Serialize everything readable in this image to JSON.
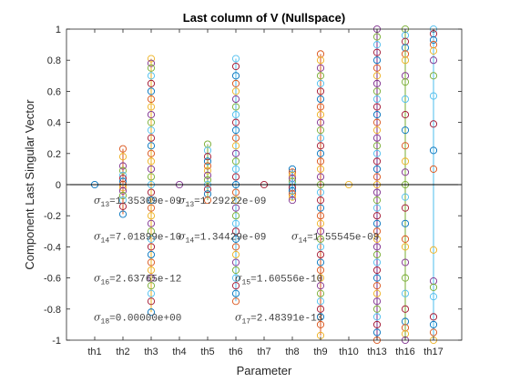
{
  "chart_data": {
    "type": "scatter",
    "title": "Last column of V (Nullspace)",
    "xlabel": "Parameter",
    "ylabel": "Component Last Singular Vector",
    "categories": [
      "th1",
      "th2",
      "th3",
      "th4",
      "th5",
      "th6",
      "th7",
      "th8",
      "th9",
      "th10",
      "th13",
      "th16",
      "th17"
    ],
    "ylim": [
      -1,
      1
    ],
    "yticks": [
      -1,
      -0.8,
      -0.6,
      -0.4,
      -0.2,
      0,
      0.2,
      0.4,
      0.6,
      0.8,
      1
    ],
    "ytick_labels": [
      "-1",
      "-0.8",
      "-0.6",
      "-0.4",
      "-0.2",
      "0",
      "0.2",
      "0.4",
      "0.6",
      "0.8",
      "1"
    ],
    "grid": false,
    "zero_line": true,
    "marker": "open-circle",
    "series_colors": [
      "#0072BD",
      "#D95319",
      "#EDB120",
      "#7E2F8E",
      "#77AC30",
      "#4DBEEE",
      "#A2142F"
    ],
    "columns": [
      {
        "category": "th1",
        "min": 0,
        "max": 0,
        "points": [
          0
        ]
      },
      {
        "category": "th2",
        "min": -0.19,
        "max": 0.23,
        "points": [
          0.23,
          0.18,
          0.12,
          0.09,
          0.06,
          0.04,
          0.02,
          0,
          -0.02,
          -0.04,
          -0.07,
          -0.1,
          -0.14,
          -0.19
        ]
      },
      {
        "category": "th3",
        "min": -0.82,
        "max": 0.81,
        "points": [
          0.81,
          0.78,
          0.75,
          0.7,
          0.65,
          0.6,
          0.55,
          0.5,
          0.45,
          0.4,
          0.35,
          0.3,
          0.25,
          0.2,
          0.15,
          0.1,
          0.05,
          0,
          -0.05,
          -0.1,
          -0.15,
          -0.2,
          -0.25,
          -0.3,
          -0.35,
          -0.4,
          -0.45,
          -0.5,
          -0.55,
          -0.6,
          -0.65,
          -0.7,
          -0.75,
          -0.82
        ]
      },
      {
        "category": "th4",
        "min": 0,
        "max": 0,
        "points": [
          0
        ]
      },
      {
        "category": "th5",
        "min": -0.1,
        "max": 0.26,
        "points": [
          0.26,
          0.22,
          0.18,
          0.15,
          0.12,
          0.09,
          0.06,
          0.03,
          0,
          -0.03,
          -0.06,
          -0.1
        ]
      },
      {
        "category": "th6",
        "min": -0.75,
        "max": 0.81,
        "points": [
          0.81,
          0.76,
          0.7,
          0.65,
          0.6,
          0.55,
          0.5,
          0.45,
          0.4,
          0.35,
          0.3,
          0.25,
          0.2,
          0.15,
          0.1,
          0.05,
          0,
          -0.05,
          -0.1,
          -0.15,
          -0.2,
          -0.25,
          -0.3,
          -0.35,
          -0.4,
          -0.45,
          -0.5,
          -0.55,
          -0.6,
          -0.65,
          -0.7,
          -0.75
        ]
      },
      {
        "category": "th7",
        "min": 0,
        "max": 0,
        "points": [
          0
        ]
      },
      {
        "category": "th8",
        "min": -0.1,
        "max": 0.1,
        "points": [
          0.1,
          0.08,
          0.06,
          0.04,
          0.02,
          0,
          -0.02,
          -0.04,
          -0.06,
          -0.08,
          -0.1
        ]
      },
      {
        "category": "th9",
        "min": -0.97,
        "max": 0.84,
        "points": [
          0.84,
          0.8,
          0.75,
          0.7,
          0.65,
          0.6,
          0.55,
          0.5,
          0.45,
          0.4,
          0.35,
          0.3,
          0.25,
          0.2,
          0.15,
          0.1,
          0.05,
          0,
          -0.05,
          -0.1,
          -0.15,
          -0.2,
          -0.25,
          -0.3,
          -0.35,
          -0.4,
          -0.45,
          -0.5,
          -0.55,
          -0.6,
          -0.65,
          -0.7,
          -0.75,
          -0.8,
          -0.85,
          -0.9,
          -0.97
        ]
      },
      {
        "category": "th10",
        "min": 0,
        "max": 0,
        "points": [
          0
        ]
      },
      {
        "category": "th13",
        "min": -1,
        "max": 1,
        "points": [
          1,
          0.95,
          0.9,
          0.85,
          0.8,
          0.75,
          0.7,
          0.65,
          0.6,
          0.55,
          0.5,
          0.45,
          0.4,
          0.35,
          0.3,
          0.25,
          0.2,
          0.15,
          0.1,
          0.05,
          0,
          -0.05,
          -0.1,
          -0.15,
          -0.2,
          -0.25,
          -0.3,
          -0.35,
          -0.4,
          -0.45,
          -0.5,
          -0.55,
          -0.6,
          -0.65,
          -0.7,
          -0.75,
          -0.8,
          -0.85,
          -0.9,
          -0.95,
          -1
        ]
      },
      {
        "category": "th16",
        "min": -1,
        "max": 1,
        "points": [
          1,
          0.96,
          0.92,
          0.88,
          0.84,
          0.8,
          0.7,
          0.66,
          0.55,
          0.45,
          0.35,
          0.25,
          0.15,
          0.08,
          0,
          -0.08,
          -0.15,
          -0.25,
          -0.35,
          -0.4,
          -0.5,
          -0.6,
          -0.7,
          -0.8,
          -0.88,
          -0.92,
          -0.96,
          -1
        ]
      },
      {
        "category": "th17",
        "min": -1,
        "max": 1,
        "points": [
          1,
          0.97,
          0.93,
          0.9,
          0.86,
          0.8,
          0.7,
          0.57,
          0.39,
          0.22,
          0.1,
          -0.42,
          -0.62,
          -0.66,
          -0.72,
          -0.85,
          -0.9,
          -0.95,
          -1
        ]
      }
    ],
    "annotations": [
      {
        "sub": "13",
        "value": "=1.35309e-09",
        "x_cat": "th2",
        "y": -0.1
      },
      {
        "sub": "13",
        "value": "=1.29222e-09",
        "x_cat": "th5",
        "y": -0.1
      },
      {
        "sub": "14",
        "value": "=7.01899e-10",
        "x_cat": "th2",
        "y": -0.33
      },
      {
        "sub": "14",
        "value": "=1.34429e-09",
        "x_cat": "th5",
        "y": -0.33
      },
      {
        "sub": "14",
        "value": "=1.55545e-09",
        "x_cat": "th9",
        "y": -0.33
      },
      {
        "sub": "16",
        "value": "=2.63765e-12",
        "x_cat": "th2",
        "y": -0.6
      },
      {
        "sub": "15",
        "value": "=1.60556e-10",
        "x_cat": "th7",
        "y": -0.6
      },
      {
        "sub": "18",
        "value": "=0.00000e+00",
        "x_cat": "th2",
        "y": -0.85
      },
      {
        "sub": "17",
        "value": "=2.48391e-13",
        "x_cat": "th7",
        "y": -0.85
      }
    ]
  }
}
